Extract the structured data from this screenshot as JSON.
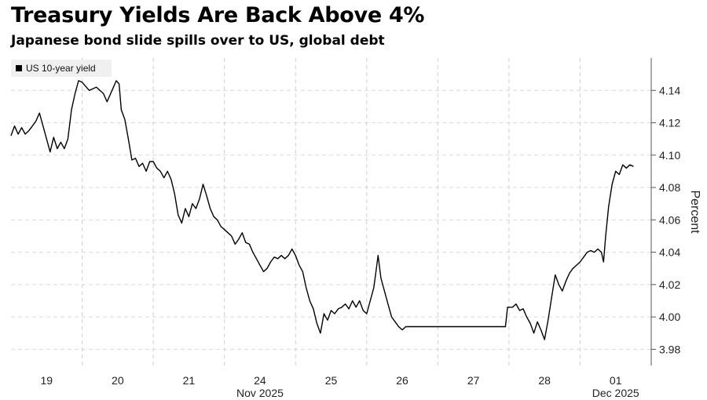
{
  "title": "Treasury Yields Are Back Above 4%",
  "subtitle": "Japanese bond slide spills over to US, global debt",
  "chart_data": {
    "type": "line",
    "title": "Treasury Yields Are Back Above 4%",
    "subtitle": "Japanese bond slide spills over to US, global debt",
    "xlabel": "",
    "ylabel": "Percent",
    "ylim": [
      3.97,
      4.16
    ],
    "yticks": [
      "3.98",
      "4.00",
      "4.02",
      "4.04",
      "4.06",
      "4.08",
      "4.10",
      "4.12",
      "4.14"
    ],
    "xticks": [
      "19",
      "20",
      "21",
      "24",
      "25",
      "26",
      "27",
      "28",
      "01"
    ],
    "month_labels": [
      {
        "text": "Nov 2025",
        "under": "24"
      },
      {
        "text": "Dec 2025",
        "under": "01"
      }
    ],
    "grid": true,
    "legend": "top-left",
    "series": [
      {
        "name": "US 10-year yield",
        "color": "#000000",
        "points": [
          [
            0.0,
            4.112
          ],
          [
            0.05,
            4.118
          ],
          [
            0.1,
            4.113
          ],
          [
            0.15,
            4.117
          ],
          [
            0.2,
            4.113
          ],
          [
            0.25,
            4.115
          ],
          [
            0.3,
            4.118
          ],
          [
            0.35,
            4.121
          ],
          [
            0.4,
            4.126
          ],
          [
            0.45,
            4.118
          ],
          [
            0.5,
            4.11
          ],
          [
            0.55,
            4.102
          ],
          [
            0.6,
            4.111
          ],
          [
            0.65,
            4.104
          ],
          [
            0.7,
            4.108
          ],
          [
            0.75,
            4.104
          ],
          [
            0.8,
            4.11
          ],
          [
            0.85,
            4.128
          ],
          [
            0.9,
            4.138
          ],
          [
            0.95,
            4.146
          ],
          [
            1.0,
            4.145
          ],
          [
            1.1,
            4.14
          ],
          [
            1.2,
            4.142
          ],
          [
            1.3,
            4.138
          ],
          [
            1.35,
            4.133
          ],
          [
            1.42,
            4.14
          ],
          [
            1.48,
            4.146
          ],
          [
            1.52,
            4.144
          ],
          [
            1.55,
            4.128
          ],
          [
            1.6,
            4.122
          ],
          [
            1.65,
            4.11
          ],
          [
            1.7,
            4.097
          ],
          [
            1.75,
            4.098
          ],
          [
            1.8,
            4.093
          ],
          [
            1.85,
            4.095
          ],
          [
            1.9,
            4.09
          ],
          [
            1.95,
            4.096
          ],
          [
            2.0,
            4.096
          ],
          [
            2.05,
            4.092
          ],
          [
            2.1,
            4.09
          ],
          [
            2.15,
            4.086
          ],
          [
            2.2,
            4.09
          ],
          [
            2.25,
            4.085
          ],
          [
            2.3,
            4.076
          ],
          [
            2.35,
            4.063
          ],
          [
            2.4,
            4.058
          ],
          [
            2.45,
            4.067
          ],
          [
            2.5,
            4.062
          ],
          [
            2.55,
            4.07
          ],
          [
            2.6,
            4.067
          ],
          [
            2.65,
            4.073
          ],
          [
            2.7,
            4.082
          ],
          [
            2.75,
            4.075
          ],
          [
            2.8,
            4.067
          ],
          [
            2.85,
            4.062
          ],
          [
            2.9,
            4.06
          ],
          [
            2.95,
            4.056
          ],
          [
            3.0,
            4.054
          ],
          [
            3.05,
            4.052
          ],
          [
            3.1,
            4.05
          ],
          [
            3.15,
            4.045
          ],
          [
            3.2,
            4.048
          ],
          [
            3.25,
            4.052
          ],
          [
            3.3,
            4.046
          ],
          [
            3.35,
            4.045
          ],
          [
            3.4,
            4.04
          ],
          [
            3.45,
            4.036
          ],
          [
            3.5,
            4.032
          ],
          [
            3.55,
            4.028
          ],
          [
            3.6,
            4.03
          ],
          [
            3.65,
            4.034
          ],
          [
            3.7,
            4.037
          ],
          [
            3.75,
            4.036
          ],
          [
            3.8,
            4.038
          ],
          [
            3.85,
            4.036
          ],
          [
            3.9,
            4.038
          ],
          [
            3.95,
            4.042
          ],
          [
            4.0,
            4.038
          ],
          [
            4.05,
            4.032
          ],
          [
            4.1,
            4.028
          ],
          [
            4.15,
            4.018
          ],
          [
            4.2,
            4.01
          ],
          [
            4.25,
            4.005
          ],
          [
            4.3,
            3.996
          ],
          [
            4.35,
            3.99
          ],
          [
            4.4,
            4.002
          ],
          [
            4.45,
            3.998
          ],
          [
            4.5,
            4.004
          ],
          [
            4.55,
            4.002
          ],
          [
            4.6,
            4.005
          ],
          [
            4.65,
            4.006
          ],
          [
            4.7,
            4.008
          ],
          [
            4.75,
            4.005
          ],
          [
            4.8,
            4.01
          ],
          [
            4.85,
            4.006
          ],
          [
            4.9,
            4.01
          ],
          [
            4.95,
            4.004
          ],
          [
            5.0,
            4.002
          ],
          [
            5.05,
            4.01
          ],
          [
            5.1,
            4.018
          ],
          [
            5.13,
            4.028
          ],
          [
            5.16,
            4.038
          ],
          [
            5.2,
            4.024
          ],
          [
            5.25,
            4.016
          ],
          [
            5.3,
            4.008
          ],
          [
            5.35,
            4.0
          ],
          [
            5.4,
            3.997
          ],
          [
            5.45,
            3.994
          ],
          [
            5.5,
            3.992
          ],
          [
            5.55,
            3.994
          ],
          [
            6.95,
            3.994
          ],
          [
            6.98,
            4.006
          ],
          [
            7.05,
            4.006
          ],
          [
            7.1,
            4.008
          ],
          [
            7.15,
            4.004
          ],
          [
            7.2,
            4.005
          ],
          [
            7.25,
            4.0
          ],
          [
            7.3,
            3.996
          ],
          [
            7.35,
            3.99
          ],
          [
            7.4,
            3.997
          ],
          [
            7.45,
            3.992
          ],
          [
            7.5,
            3.986
          ],
          [
            7.55,
            3.998
          ],
          [
            7.6,
            4.012
          ],
          [
            7.65,
            4.026
          ],
          [
            7.7,
            4.02
          ],
          [
            7.75,
            4.016
          ],
          [
            7.8,
            4.022
          ],
          [
            7.85,
            4.027
          ],
          [
            7.9,
            4.03
          ],
          [
            7.95,
            4.032
          ],
          [
            8.0,
            4.034
          ],
          [
            8.05,
            4.037
          ],
          [
            8.1,
            4.04
          ],
          [
            8.15,
            4.041
          ],
          [
            8.2,
            4.04
          ],
          [
            8.25,
            4.042
          ],
          [
            8.3,
            4.04
          ],
          [
            8.33,
            4.034
          ],
          [
            8.36,
            4.05
          ],
          [
            8.4,
            4.068
          ],
          [
            8.45,
            4.082
          ],
          [
            8.5,
            4.09
          ],
          [
            8.55,
            4.088
          ],
          [
            8.6,
            4.094
          ],
          [
            8.65,
            4.092
          ],
          [
            8.7,
            4.094
          ],
          [
            8.75,
            4.093
          ]
        ]
      }
    ]
  }
}
